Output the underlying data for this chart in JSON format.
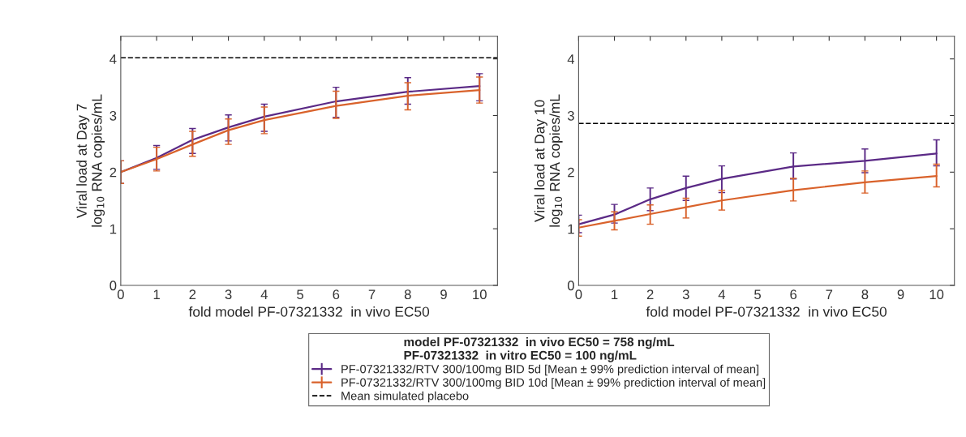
{
  "chart_data": [
    {
      "type": "line",
      "xlabel": "fold model PF-07321332  in vivo EC50",
      "ylabel": "Viral load at Day 7\nlog$_{10}$ RNA copies/mL",
      "legend_title": "model PF-07321332  in vivo EC50 = 758 ng/mL\nPF-07321332  in vitro EC50 = 100 ng/mL",
      "legend": "bottom",
      "grid": false,
      "marker": "none",
      "line_style": "solid",
      "x": [
        0,
        1,
        2,
        3,
        4,
        6,
        8,
        10
      ],
      "xlim": [
        0,
        10.5
      ],
      "xticks": [
        0,
        1,
        2,
        3,
        4,
        5,
        6,
        7,
        8,
        9,
        10
      ],
      "ylim": [
        0,
        4.4
      ],
      "yticks": [
        0,
        1,
        2,
        3,
        4
      ],
      "series": [
        {
          "name": "PF-07321332/RTV 300/100mg BID 5d [Mean ± 99% prediction interval of mean]",
          "color": "#5b2a86",
          "values": [
            2.0,
            2.25,
            2.57,
            2.79,
            2.98,
            3.25,
            3.42,
            3.52
          ],
          "errors": [
            [
              1.8,
              2.2
            ],
            [
              2.05,
              2.47
            ],
            [
              2.33,
              2.77
            ],
            [
              2.55,
              3.01
            ],
            [
              2.72,
              3.2
            ],
            [
              2.97,
              3.5
            ],
            [
              3.2,
              3.67
            ],
            [
              3.26,
              3.74
            ]
          ]
        },
        {
          "name": "PF-07321332/RTV 300/100mg BID 10d [Mean ± 99% prediction interval of mean]",
          "color": "#d9622b",
          "values": [
            2.0,
            2.23,
            2.49,
            2.74,
            2.92,
            3.17,
            3.35,
            3.45
          ],
          "errors": [
            [
              1.8,
              2.2
            ],
            [
              2.02,
              2.44
            ],
            [
              2.28,
              2.72
            ],
            [
              2.49,
              2.94
            ],
            [
              2.68,
              3.15
            ],
            [
              2.95,
              3.43
            ],
            [
              3.1,
              3.58
            ],
            [
              3.22,
              3.68
            ]
          ]
        }
      ],
      "ref_lines": [
        {
          "axis": "y",
          "value": 4.02,
          "label": "Mean simulated placebo",
          "color": "#000000",
          "line_style": "dashed"
        }
      ]
    },
    {
      "type": "line",
      "xlabel": "fold model PF-07321332  in vivo EC50",
      "ylabel": "Viral load at Day 10\nlog$_{10}$ RNA copies/mL",
      "grid": false,
      "marker": "none",
      "line_style": "solid",
      "x": [
        0,
        1,
        2,
        3,
        4,
        6,
        8,
        10
      ],
      "xlim": [
        0,
        10.5
      ],
      "xticks": [
        0,
        1,
        2,
        3,
        4,
        5,
        6,
        7,
        8,
        9,
        10
      ],
      "ylim": [
        0,
        4.4
      ],
      "yticks": [
        0,
        1,
        2,
        3,
        4
      ],
      "series": [
        {
          "color": "#5b2a86",
          "values": [
            1.08,
            1.25,
            1.52,
            1.72,
            1.88,
            2.1,
            2.2,
            2.33
          ],
          "errors": [
            [
              0.93,
              1.24
            ],
            [
              1.1,
              1.43
            ],
            [
              1.32,
              1.72
            ],
            [
              1.5,
              1.93
            ],
            [
              1.64,
              2.11
            ],
            [
              1.88,
              2.34
            ],
            [
              1.99,
              2.41
            ],
            [
              2.11,
              2.57
            ]
          ]
        },
        {
          "color": "#d9622b",
          "values": [
            1.02,
            1.14,
            1.26,
            1.38,
            1.5,
            1.68,
            1.82,
            1.93
          ],
          "errors": [
            [
              0.87,
              1.16
            ],
            [
              0.98,
              1.3
            ],
            [
              1.08,
              1.42
            ],
            [
              1.19,
              1.54
            ],
            [
              1.33,
              1.68
            ],
            [
              1.49,
              1.89
            ],
            [
              1.63,
              2.02
            ],
            [
              1.74,
              2.14
            ]
          ]
        }
      ],
      "ref_lines": [
        {
          "axis": "y",
          "value": 2.86,
          "color": "#000000",
          "line_style": "dashed"
        }
      ]
    }
  ]
}
